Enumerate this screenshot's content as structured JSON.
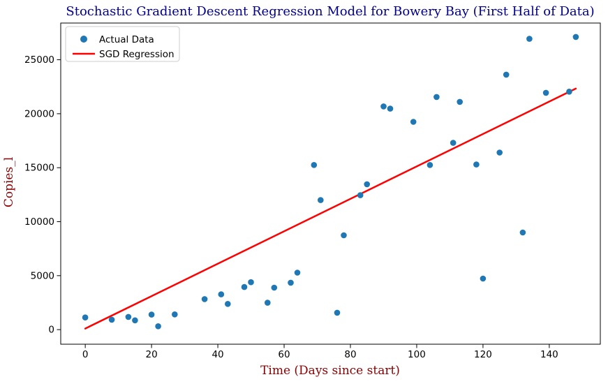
{
  "chart_data": {
    "type": "scatter",
    "title": "Stochastic Gradient Descent Regression Model for Bowery Bay (First Half of Data)",
    "xlabel": "Time (Days since start)",
    "ylabel": "Copies_l",
    "xlim": [
      -7.4,
      155.4
    ],
    "ylim": [
      -1350,
      28400
    ],
    "x_ticks": [
      0,
      20,
      40,
      60,
      80,
      100,
      120,
      140
    ],
    "y_ticks": [
      0,
      5000,
      10000,
      15000,
      20000,
      25000
    ],
    "grid": false,
    "legend_position": "upper left",
    "colors": {
      "title": "#00008B",
      "axis_labels": "#8B0000",
      "tick_labels": "#000000",
      "scatter": "#1f77b4",
      "regression_line": "#ff0000",
      "spine": "#000000",
      "legend_border": "#cccccc"
    },
    "legend": [
      {
        "label": "Actual Data",
        "marker": "dot",
        "color": "#1f77b4"
      },
      {
        "label": "SGD Regression",
        "marker": "line",
        "color": "#ff0000"
      }
    ],
    "series": [
      {
        "name": "Actual Data",
        "type": "scatter",
        "color": "#1f77b4",
        "points": [
          [
            0,
            1130
          ],
          [
            8,
            920
          ],
          [
            13,
            1180
          ],
          [
            15,
            860
          ],
          [
            20,
            1390
          ],
          [
            22,
            310
          ],
          [
            27,
            1410
          ],
          [
            36,
            2830
          ],
          [
            41,
            3270
          ],
          [
            43,
            2380
          ],
          [
            48,
            3950
          ],
          [
            50,
            4390
          ],
          [
            55,
            2490
          ],
          [
            57,
            3890
          ],
          [
            62,
            4350
          ],
          [
            64,
            5280
          ],
          [
            69,
            15250
          ],
          [
            71,
            12000
          ],
          [
            76,
            1570
          ],
          [
            78,
            8740
          ],
          [
            83,
            12450
          ],
          [
            85,
            13470
          ],
          [
            90,
            20680
          ],
          [
            92,
            20470
          ],
          [
            99,
            19250
          ],
          [
            104,
            15250
          ],
          [
            106,
            21550
          ],
          [
            111,
            17300
          ],
          [
            113,
            21100
          ],
          [
            118,
            15300
          ],
          [
            120,
            4730
          ],
          [
            125,
            16400
          ],
          [
            127,
            23620
          ],
          [
            132,
            9000
          ],
          [
            134,
            26940
          ],
          [
            139,
            21940
          ],
          [
            146,
            22040
          ],
          [
            148,
            27110
          ]
        ]
      },
      {
        "name": "SGD Regression",
        "type": "line",
        "color": "#ff0000",
        "points": [
          [
            0,
            100
          ],
          [
            148,
            22330
          ]
        ]
      }
    ]
  }
}
